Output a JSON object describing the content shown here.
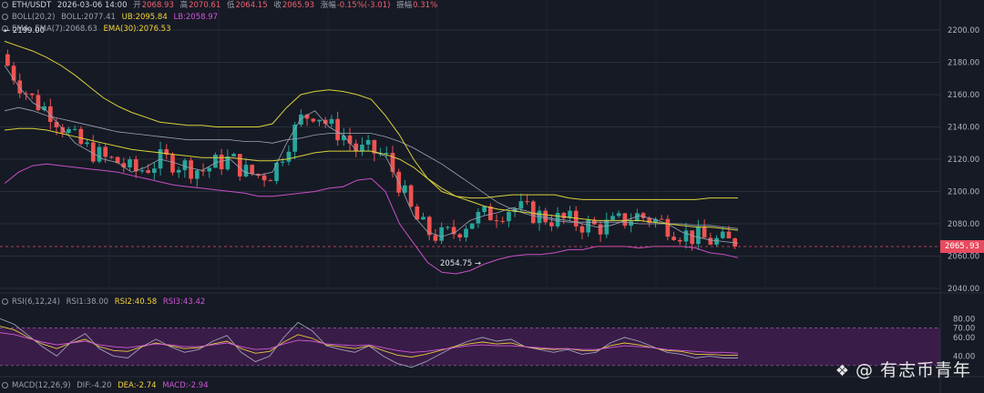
{
  "header": {
    "pair": "ETH/USDT",
    "datetime": "2026-03-06 14:00",
    "open_label": "开",
    "open": "2068.93",
    "high_label": "高",
    "high": "2070.61",
    "low_label": "低",
    "low": "2064.15",
    "close_label": "收",
    "close": "2065.93",
    "change_label": "涨幅",
    "change": "-0.15%(-3.01)",
    "amplitude_label": "振幅",
    "amplitude": "0.31%"
  },
  "boll": {
    "name": "BOLL(20,2)",
    "boll": "BOLL:2077.41",
    "ub": "UB:2095.84",
    "lb": "LB:2058.97"
  },
  "ema": {
    "name": "EMA",
    "ema7": "EMA(7):2068.63",
    "ema30": "EMA(30):2076.53"
  },
  "rsi": {
    "name": "RSI(6,12,24)",
    "rsi1": "RSI1:38.00",
    "rsi2": "RSI2:40.58",
    "rsi3": "RSI3:43.42"
  },
  "macd": {
    "name": "MACD(12,26,9)",
    "dif": "DIF:-4.20",
    "dea": "DEA:-2.74",
    "macd": "MACD:-2.94"
  },
  "markers": {
    "high_mark": "← 2199.00",
    "low_mark": "2054.75 →"
  },
  "price_tag": "2065.93",
  "watermark": "@ 有志币青年",
  "colors": {
    "up": "#26a69a",
    "down": "#ef5350",
    "boll_mid": "#9aa3b5",
    "boll_upper": "#d8d13a",
    "boll_lower": "#c84fc6",
    "ema7": "#9aa3b5",
    "ema30": "#d8d13a",
    "rsi1": "#9aa3b5",
    "rsi2": "#e3c93a",
    "rsi3": "#d05ad6",
    "rsi_band": "#5a1f66",
    "price_line": "#e84a5f",
    "grid": "#2a2e39",
    "bg": "#161a25"
  },
  "chart_data": [
    {
      "type": "candlestick",
      "title": "ETH/USDT",
      "ylim": [
        2040,
        2200
      ],
      "y_ticks": [
        "2200.00",
        "2180.00",
        "2160.00",
        "2140.00",
        "2120.00",
        "2100.00",
        "2080.00",
        "2060.00",
        "2040.00"
      ],
      "highest_marked": 2199.0,
      "lowest_marked": 2054.75,
      "last_price": 2065.93,
      "series": [
        {
          "name": "BOLL",
          "values": [
            2150,
            2152,
            2150,
            2147,
            2145,
            2143,
            2141,
            2139,
            2137,
            2136,
            2135,
            2134,
            2133,
            2132,
            2132,
            2132,
            2132,
            2131,
            2131,
            2130,
            2132,
            2133,
            2135,
            2136,
            2136,
            2136,
            2136,
            2134,
            2131,
            2127,
            2122,
            2117,
            2111,
            2105,
            2099,
            2093,
            2089,
            2086,
            2084,
            2082,
            2081,
            2081,
            2081,
            2081,
            2081,
            2080,
            2080,
            2080,
            2080,
            2079,
            2079,
            2078,
            2077
          ]
        },
        {
          "name": "UB",
          "values": [
            2193,
            2190,
            2187,
            2183,
            2178,
            2172,
            2165,
            2158,
            2153,
            2149,
            2146,
            2143,
            2142,
            2141,
            2141,
            2140,
            2140,
            2140,
            2140,
            2142,
            2152,
            2160,
            2162,
            2163,
            2162,
            2160,
            2157,
            2147,
            2135,
            2120,
            2108,
            2100,
            2097,
            2096,
            2096,
            2097,
            2098,
            2098,
            2098,
            2098,
            2096,
            2095,
            2095,
            2095,
            2095,
            2095,
            2095,
            2095,
            2095,
            2095,
            2096,
            2096,
            2096
          ]
        },
        {
          "name": "LB",
          "values": [
            2105,
            2112,
            2116,
            2117,
            2116,
            2115,
            2114,
            2113,
            2112,
            2110,
            2108,
            2106,
            2104,
            2103,
            2102,
            2101,
            2100,
            2099,
            2097,
            2097,
            2098,
            2099,
            2100,
            2102,
            2103,
            2107,
            2108,
            2100,
            2080,
            2068,
            2056,
            2050,
            2049,
            2051,
            2055,
            2058,
            2060,
            2061,
            2061,
            2062,
            2064,
            2064,
            2066,
            2066,
            2066,
            2065,
            2066,
            2066,
            2066,
            2065,
            2062,
            2061,
            2059
          ]
        },
        {
          "name": "EMA(7)",
          "values": [
            2178,
            2165,
            2155,
            2150,
            2140,
            2130,
            2125,
            2120,
            2118,
            2112,
            2115,
            2120,
            2118,
            2115,
            2113,
            2118,
            2120,
            2112,
            2110,
            2112,
            2130,
            2145,
            2150,
            2140,
            2135,
            2125,
            2125,
            2122,
            2105,
            2085,
            2075,
            2072,
            2075,
            2082,
            2085,
            2087,
            2090,
            2088,
            2085,
            2083,
            2082,
            2080,
            2078,
            2079,
            2082,
            2085,
            2083,
            2080,
            2075,
            2072,
            2070,
            2069,
            2068
          ]
        },
        {
          "name": "EMA(30)",
          "values": [
            2138,
            2139,
            2139,
            2138,
            2136,
            2134,
            2132,
            2130,
            2128,
            2126,
            2125,
            2124,
            2123,
            2122,
            2121,
            2121,
            2121,
            2120,
            2119,
            2119,
            2120,
            2122,
            2124,
            2125,
            2125,
            2125,
            2125,
            2123,
            2120,
            2115,
            2108,
            2102,
            2097,
            2094,
            2091,
            2089,
            2088,
            2087,
            2086,
            2085,
            2084,
            2083,
            2082,
            2082,
            2082,
            2082,
            2081,
            2080,
            2079,
            2078,
            2078,
            2077,
            2076
          ]
        }
      ]
    },
    {
      "type": "line",
      "title": "RSI(6,12,24)",
      "ylim": [
        20,
        90
      ],
      "y_ticks": [
        "80.00",
        "70.00",
        "60.00",
        "40.00"
      ],
      "series": [
        {
          "name": "RSI1",
          "values": [
            80,
            74,
            62,
            50,
            40,
            55,
            64,
            48,
            40,
            38,
            50,
            58,
            50,
            44,
            47,
            56,
            62,
            44,
            34,
            40,
            60,
            76,
            67,
            51,
            47,
            44,
            51,
            40,
            32,
            28,
            34,
            42,
            50,
            56,
            60,
            56,
            58,
            50,
            47,
            44,
            47,
            42,
            44,
            54,
            60,
            56,
            50,
            44,
            42,
            38,
            40,
            38,
            38
          ]
        },
        {
          "name": "RSI2",
          "values": [
            72,
            68,
            60,
            53,
            48,
            54,
            58,
            50,
            46,
            45,
            50,
            54,
            51,
            48,
            49,
            53,
            56,
            48,
            43,
            45,
            55,
            63,
            59,
            52,
            50,
            48,
            51,
            46,
            41,
            39,
            42,
            46,
            50,
            53,
            55,
            53,
            54,
            50,
            48,
            47,
            48,
            46,
            46,
            51,
            54,
            52,
            49,
            46,
            45,
            42,
            42,
            41,
            41
          ]
        },
        {
          "name": "RSI3",
          "values": [
            65,
            63,
            59,
            55,
            52,
            54,
            56,
            52,
            50,
            49,
            51,
            53,
            52,
            50,
            50,
            52,
            54,
            50,
            47,
            48,
            53,
            57,
            56,
            53,
            52,
            51,
            52,
            49,
            46,
            44,
            45,
            47,
            49,
            51,
            52,
            51,
            51,
            50,
            49,
            48,
            48,
            47,
            47,
            49,
            51,
            50,
            49,
            47,
            46,
            45,
            44,
            44,
            43
          ]
        }
      ]
    },
    {
      "type": "bar",
      "title": "MACD(12,26,9)",
      "series": [
        {
          "name": "DIF",
          "values": [
            -4.2
          ]
        },
        {
          "name": "DEA",
          "values": [
            -2.74
          ]
        },
        {
          "name": "MACD",
          "values": [
            -2.94
          ]
        }
      ]
    }
  ]
}
